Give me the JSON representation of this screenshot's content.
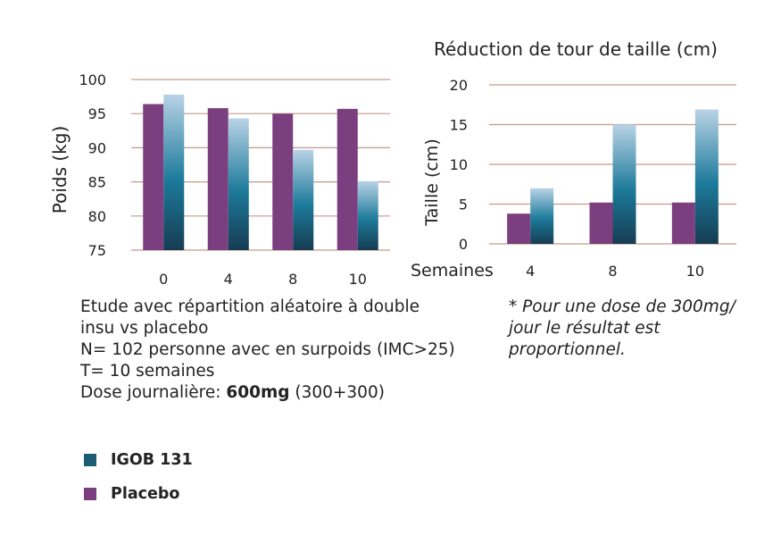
{
  "chart_data": [
    {
      "type": "bar",
      "title": "",
      "xlabel": "",
      "ylabel": "Poids (kg)",
      "categories": [
        "0",
        "4",
        "8",
        "10"
      ],
      "ylim": [
        75,
        100
      ],
      "yticks": [
        "75",
        "80",
        "85",
        "90",
        "95",
        "100"
      ],
      "series": [
        {
          "name": "Placebo",
          "values": [
            96.4,
            95.8,
            95.0,
            95.7
          ]
        },
        {
          "name": "IGOB 131",
          "values": [
            97.8,
            94.3,
            89.7,
            85.1
          ]
        }
      ]
    },
    {
      "type": "bar",
      "title": "Réduction de tour de taille (cm)",
      "xlabel": "Semaines",
      "ylabel": "Taille (cm)",
      "categories": [
        "4",
        "8",
        "10"
      ],
      "ylim": [
        0,
        20
      ],
      "yticks": [
        "0",
        "5",
        "10",
        "15",
        "20"
      ],
      "series": [
        {
          "name": "Placebo",
          "values": [
            3.8,
            5.2,
            5.2
          ]
        },
        {
          "name": "IGOB 131",
          "values": [
            7.0,
            15.0,
            16.9
          ]
        }
      ]
    }
  ],
  "colors": {
    "placebo": "#7b3f7f",
    "igob_top": "#b9d3e6",
    "igob_mid": "#1c7a9a",
    "igob_bottom": "#163c52",
    "gridline": "#c29a8c"
  },
  "study": {
    "line1": "Etude avec répartition aléatoire à double",
    "line2": "insu vs placebo",
    "line3": "N= 102 personne avec en surpoids (IMC>25)",
    "line4": "T= 10 semaines",
    "dose_label": "Dose journalière: ",
    "dose_value": "600mg",
    "dose_detail": " (300+300)"
  },
  "note": {
    "line1": "* Pour une dose de 300mg/",
    "line2": "jour le résultat est",
    "line3": "proportionnel."
  },
  "legend": [
    {
      "label": "IGOB 131"
    },
    {
      "label": "Placebo"
    }
  ]
}
